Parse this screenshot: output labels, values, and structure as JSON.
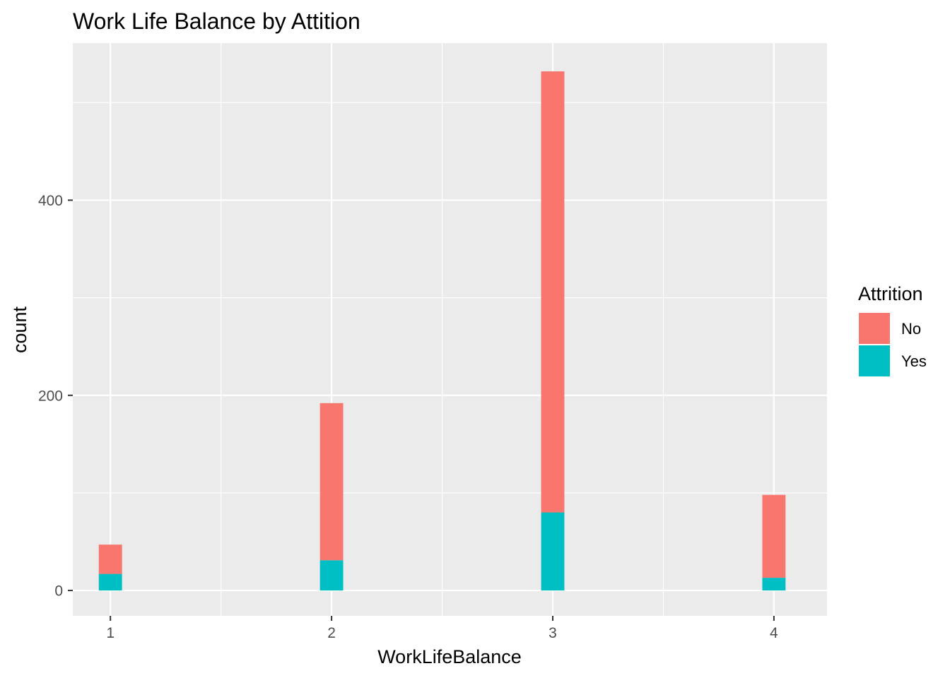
{
  "chart_data": {
    "type": "bar",
    "stacked": true,
    "title": "Work Life Balance by Attition",
    "xlabel": "WorkLifeBalance",
    "ylabel": "count",
    "categories": [
      1,
      2,
      3,
      4
    ],
    "xlim": [
      0.83,
      4.24
    ],
    "ylim": [
      -26,
      561
    ],
    "x_ticks": [
      "1",
      "2",
      "3",
      "4"
    ],
    "y_ticks": [
      0,
      200,
      400
    ],
    "grid": true,
    "background": "#ebebeb",
    "legend": {
      "title": "Attrition",
      "position": "right",
      "entries": [
        "No",
        "Yes"
      ]
    },
    "series": [
      {
        "name": "No",
        "color": "#f8766d",
        "values": [
          30,
          161,
          452,
          85
        ]
      },
      {
        "name": "Yes",
        "color": "#00bfc4",
        "values": [
          17,
          31,
          80,
          13
        ]
      }
    ]
  }
}
